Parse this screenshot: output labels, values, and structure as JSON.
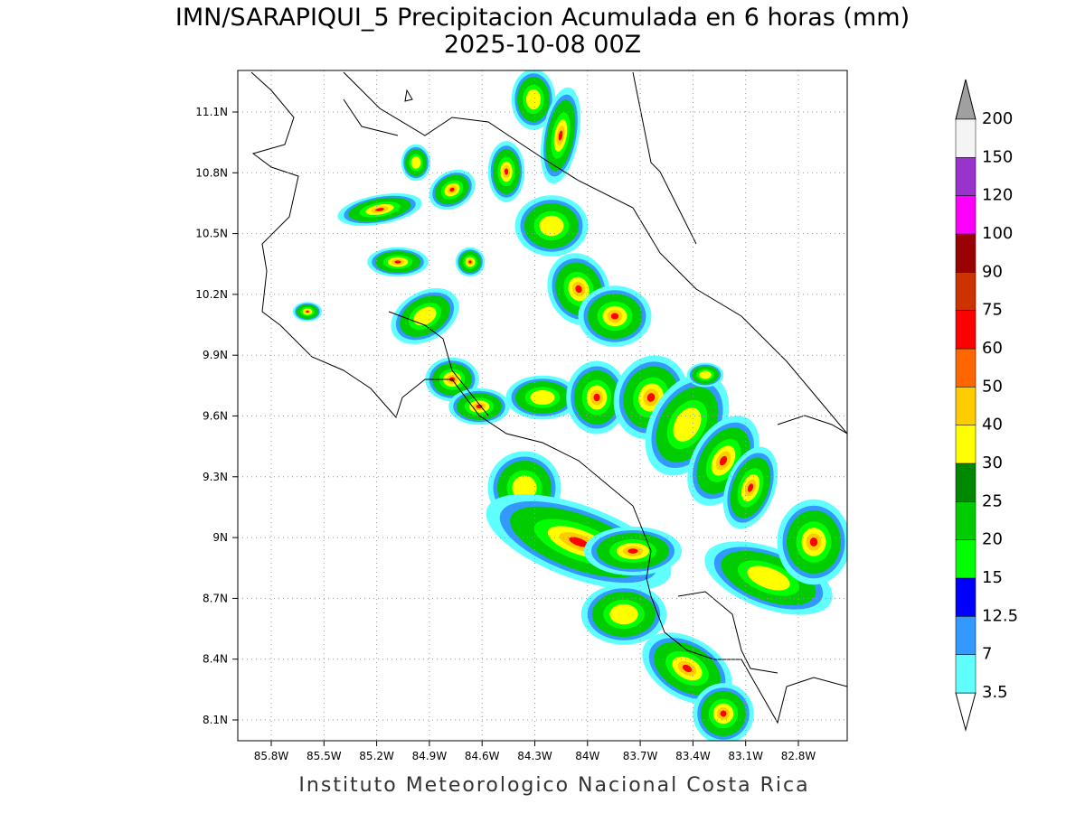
{
  "map": {
    "title": "IMN/SARAPIQUI_5 Precipitacion Acumulada en 6 horas (mm)",
    "subtitle": "2025-10-08 00Z",
    "lon_ticks": [
      "85.8W",
      "85.5W",
      "85.2W",
      "84.9W",
      "84.6W",
      "84.3W",
      "84W",
      "83.7W",
      "83.4W",
      "83.1W",
      "82.8W"
    ],
    "lat_ticks": [
      "11.1N",
      "10.8N",
      "10.5N",
      "10.2N",
      "9.9N",
      "9.6N",
      "9.3N",
      "9N",
      "8.7N",
      "8.4N",
      "8.1N"
    ],
    "colorbar": {
      "labels": [
        "3.5",
        "7",
        "12.5",
        "15",
        "20",
        "25",
        "30",
        "40",
        "50",
        "60",
        "75",
        "90",
        "100",
        "120",
        "150",
        "200"
      ],
      "below_color": "#ffffff",
      "colors": [
        "#5fffff",
        "#3399ff",
        "#0000ff",
        "#00ff00",
        "#00cc00",
        "#008800",
        "#ffff00",
        "#ffcc00",
        "#ff6600",
        "#ff0000",
        "#cc3300",
        "#990000",
        "#ff00ff",
        "#9933cc",
        "#f4f4f4"
      ],
      "above_color": "#a0a0a0"
    },
    "credit": "Instituto Meteorologico Nacional Costa Rica"
  }
}
